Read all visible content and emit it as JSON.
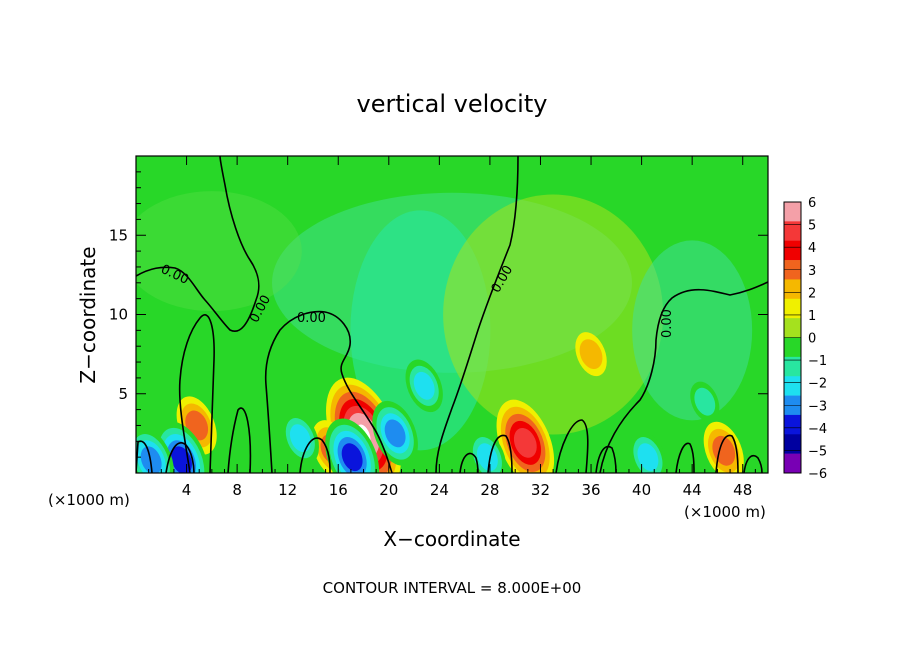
{
  "chart_data": {
    "type": "heatmap",
    "title": "vertical velocity",
    "xlabel": "X−coordinate",
    "ylabel": "Z−coordinate",
    "x_unit": "(×1000 m)",
    "x_unit_right": "(×1000 m)",
    "xlim": [
      0,
      50
    ],
    "ylim": [
      0,
      20
    ],
    "x_ticks": [
      "4",
      "8",
      "12",
      "16",
      "20",
      "24",
      "28",
      "32",
      "36",
      "40",
      "44",
      "48"
    ],
    "x_tick_values": [
      4,
      8,
      12,
      16,
      20,
      24,
      28,
      32,
      36,
      40,
      44,
      48
    ],
    "y_ticks": [
      "5",
      "10",
      "15"
    ],
    "y_tick_values": [
      5,
      10,
      15
    ],
    "footer": "CONTOUR INTERVAL = 8.000E+00",
    "contour_level": 0,
    "contour_labels": [
      "0.00",
      "0.00",
      "0.00",
      "0.00",
      "0.00"
    ],
    "colorbar": {
      "labels": [
        "6",
        "5",
        "4",
        "3",
        "2",
        "1",
        "0",
        "−1",
        "−2",
        "−3",
        "−4",
        "−5",
        "−6"
      ],
      "values": [
        6,
        5,
        4,
        3,
        2,
        1,
        0,
        -1,
        -2,
        -3,
        -4,
        -5,
        -6
      ],
      "colors": [
        "#f4a0a8",
        "#f43838",
        "#f00000",
        "#f0641e",
        "#f5b800",
        "#f0f000",
        "#a5e11e",
        "#28d728",
        "#28e6a0",
        "#1ee0f0",
        "#1e8cf0",
        "#0a14dc",
        "#0000a0",
        "#7800b4"
      ]
    },
    "features": [
      {
        "x": 18.0,
        "z": 2.4,
        "w": 6.2,
        "kind": "updraft"
      },
      {
        "x": 30.8,
        "z": 1.9,
        "w": 4.6,
        "kind": "updraft"
      },
      {
        "x": 36.0,
        "z": 7.5,
        "w": 1.6,
        "kind": "updraft"
      },
      {
        "x": 4.8,
        "z": 3.0,
        "w": 2.6,
        "kind": "updraft"
      },
      {
        "x": 15.5,
        "z": 1.5,
        "w": 3.0,
        "kind": "updraft"
      },
      {
        "x": 46.5,
        "z": 1.4,
        "w": 2.4,
        "kind": "updraft"
      },
      {
        "x": 20.5,
        "z": 2.5,
        "w": -3.2,
        "kind": "downdraft"
      },
      {
        "x": 22.8,
        "z": 5.5,
        "w": -2.4,
        "kind": "downdraft"
      },
      {
        "x": 3.6,
        "z": 0.8,
        "w": -4.5,
        "kind": "downdraft"
      },
      {
        "x": 1.2,
        "z": 0.8,
        "w": -3.8,
        "kind": "downdraft"
      },
      {
        "x": 13.0,
        "z": 2.2,
        "w": -2.6,
        "kind": "downdraft"
      },
      {
        "x": 17.1,
        "z": 1.0,
        "w": -4.2,
        "kind": "downdraft"
      },
      {
        "x": 27.8,
        "z": 1.0,
        "w": -2.8,
        "kind": "downdraft"
      },
      {
        "x": 40.5,
        "z": 1.0,
        "w": -2.2,
        "kind": "downdraft"
      },
      {
        "x": 45.0,
        "z": 4.5,
        "w": -1.2,
        "kind": "downdraft"
      }
    ]
  }
}
